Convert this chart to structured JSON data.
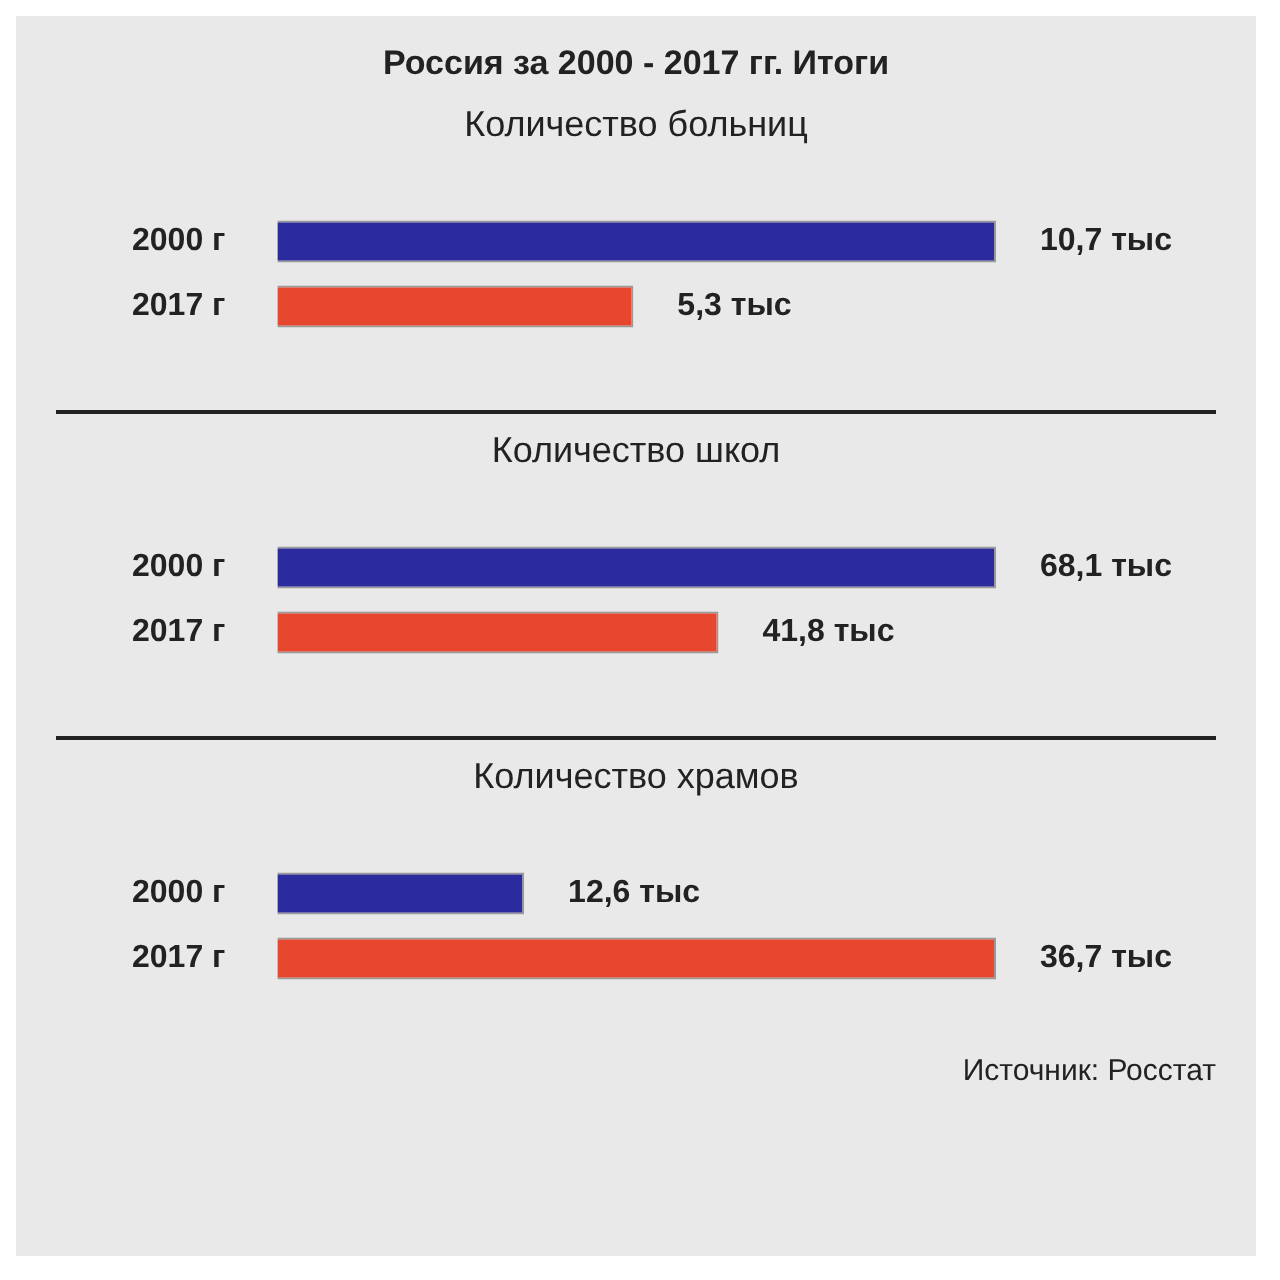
{
  "chart_data": [
    {
      "type": "bar",
      "orientation": "horizontal",
      "title": "Россия за 2000 - 2017 гг. Итоги",
      "subtitle": "Количество больниц",
      "categories": [
        "2000 г",
        "2017 г"
      ],
      "values": [
        10.7,
        5.3
      ],
      "colors": [
        "#2b2b9e",
        "#e8472f"
      ],
      "value_labels": [
        "10,7 тыс",
        "5,3 тыс"
      ]
    },
    {
      "type": "bar",
      "orientation": "horizontal",
      "subtitle": "Количество школ",
      "categories": [
        "2000 г",
        "2017 г"
      ],
      "values": [
        68.1,
        41.8
      ],
      "colors": [
        "#2b2b9e",
        "#e8472f"
      ],
      "value_labels": [
        "68,1 тыс",
        "41,8 тыс"
      ]
    },
    {
      "type": "bar",
      "orientation": "horizontal",
      "subtitle": "Количество храмов",
      "categories": [
        "2000 г",
        "2017 г"
      ],
      "values": [
        12.6,
        36.7
      ],
      "colors": [
        "#2b2b9e",
        "#e8472f"
      ],
      "value_labels": [
        "12,6 тыс",
        "36,7 тыс"
      ],
      "annotations": [
        "Источник: Росстат"
      ]
    }
  ]
}
